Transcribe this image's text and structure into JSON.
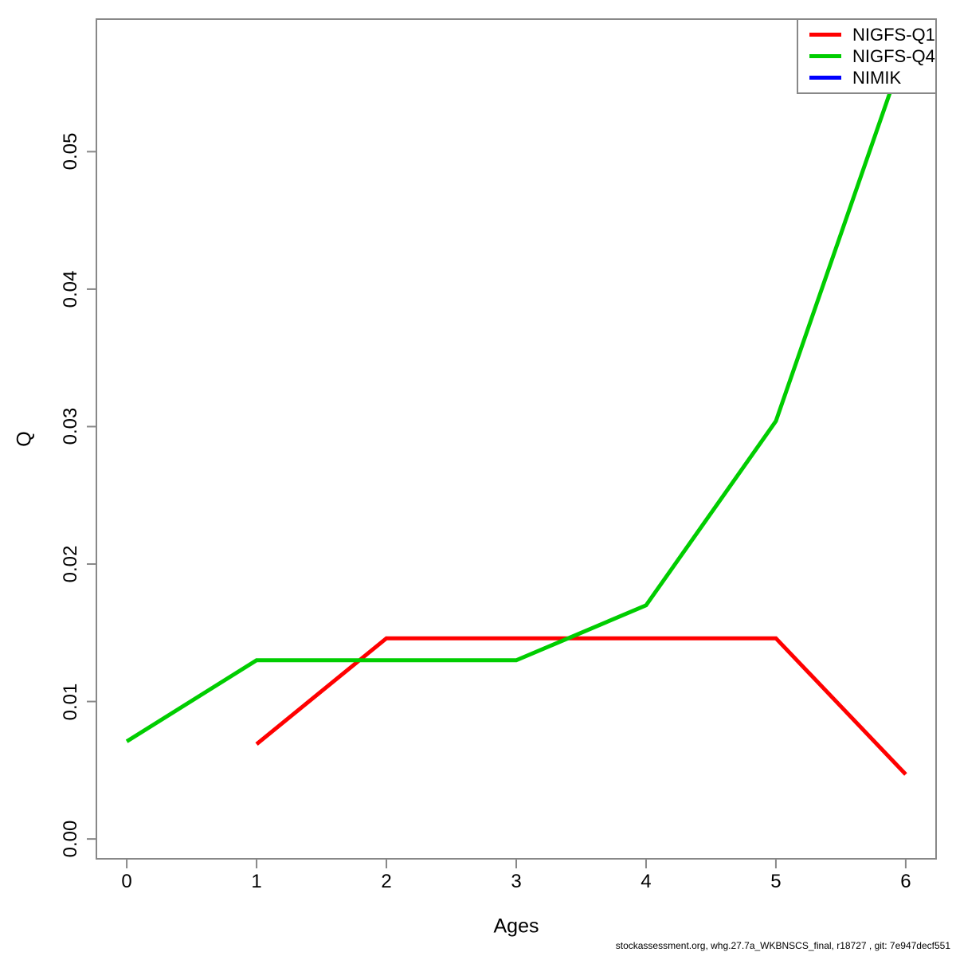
{
  "footer": {
    "text": "stockassessment.org, whg.27.7a_WKBNSCS_final, r18727 , git: 7e947decf551"
  },
  "chart_data": {
    "type": "line",
    "title": "",
    "xlabel": "Ages",
    "ylabel": "Q",
    "xlim": [
      -0.24,
      6.24
    ],
    "ylim": [
      -0.0015,
      0.0597
    ],
    "x_tick_labels": [
      "0",
      "1",
      "2",
      "3",
      "4",
      "5",
      "6"
    ],
    "x_tick_values": [
      0,
      1,
      2,
      3,
      4,
      5,
      6
    ],
    "y_tick_labels": [
      "0.00",
      "0.01",
      "0.02",
      "0.03",
      "0.04",
      "0.05"
    ],
    "y_tick_values": [
      0,
      0.01,
      0.02,
      0.03,
      0.04,
      0.05
    ],
    "grid": false,
    "legend_position": "topright",
    "axis_color": "#888888",
    "text_color": "#000000",
    "series": [
      {
        "name": "NIGFS-Q1",
        "color": "#FF0000",
        "x": [
          1,
          2,
          3,
          4,
          5,
          6
        ],
        "y": [
          0.0069,
          0.0146,
          0.0146,
          0.0146,
          0.0146,
          0.0047
        ]
      },
      {
        "name": "NIGFS-Q4",
        "color": "#00CD00",
        "x": [
          0,
          1,
          2,
          3,
          4,
          5,
          6
        ],
        "y": [
          0.0071,
          0.013,
          0.013,
          0.013,
          0.017,
          0.0304,
          0.0576
        ]
      },
      {
        "name": "NIMIK",
        "color": "#0000FF",
        "x": [],
        "y": []
      }
    ]
  }
}
